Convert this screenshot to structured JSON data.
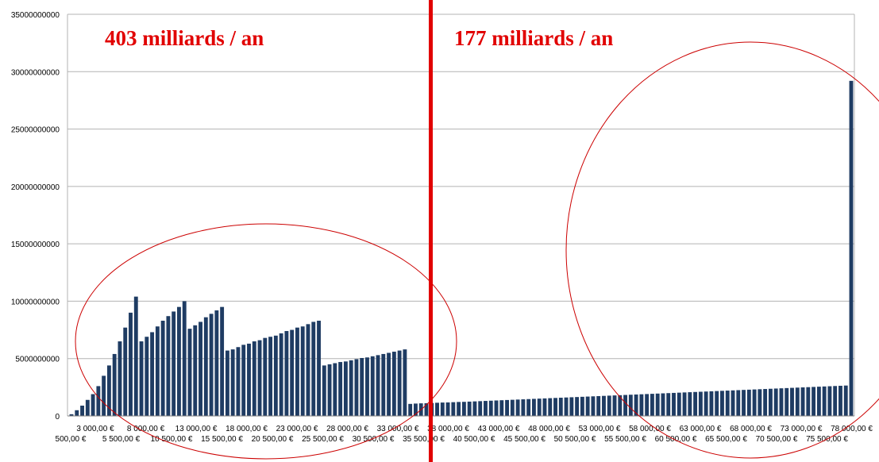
{
  "chart_data": {
    "type": "bar",
    "title": "",
    "xlabel": "",
    "ylabel": "",
    "ylim": [
      0,
      35000000000
    ],
    "yticks": [
      0,
      5000000000,
      10000000000,
      15000000000,
      20000000000,
      25000000000,
      30000000000,
      35000000000
    ],
    "ytick_labels": [
      "0",
      "5000000000",
      "10000000000",
      "15000000000",
      "20000000000",
      "25000000000",
      "30000000000",
      "35000000000"
    ],
    "grid": true,
    "bar_color": "#1f3c63",
    "x_labels_upper": [
      "3 000,00 €",
      "8 000,00 €",
      "13 000,00 €",
      "18 000,00 €",
      "23 000,00 €",
      "28 000,00 €",
      "33 000,00 €",
      "38 000,00 €",
      "43 000,00 €",
      "48 000,00 €",
      "53 000,00 €",
      "58 000,00 €",
      "63 000,00 €",
      "68 000,00 €",
      "73 000,00 €",
      "78 000,00 €"
    ],
    "x_labels_lower": [
      "500,00 €",
      "5 500,00 €",
      "10 500,00 €",
      "15 500,00 €",
      "20 500,00 €",
      "25 500,00 €",
      "30 500,00 €",
      "35 500,00 €",
      "40 500,00 €",
      "45 500,00 €",
      "50 500,00 €",
      "55 500,00 €",
      "60 500,00 €",
      "65 500,00 €",
      "70 500,00 €",
      "75 500,00 €"
    ],
    "values": [
      150000000,
      500000000,
      900000000,
      1400000000,
      1900000000,
      2600000000,
      3500000000,
      4400000000,
      5400000000,
      6500000000,
      7700000000,
      9000000000,
      10400000000,
      6500000000,
      6900000000,
      7300000000,
      7800000000,
      8300000000,
      8700000000,
      9100000000,
      9500000000,
      10000000000,
      7600000000,
      7900000000,
      8200000000,
      8600000000,
      8900000000,
      9200000000,
      9500000000,
      5700000000,
      5800000000,
      6000000000,
      6200000000,
      6300000000,
      6500000000,
      6600000000,
      6800000000,
      6900000000,
      7000000000,
      7200000000,
      7400000000,
      7500000000,
      7700000000,
      7800000000,
      8000000000,
      8200000000,
      8300000000,
      4400000000,
      4500000000,
      4600000000,
      4700000000,
      4750000000,
      4850000000,
      4950000000,
      5050000000,
      5100000000,
      5200000000,
      5300000000,
      5400000000,
      5500000000,
      5600000000,
      5700000000,
      5800000000,
      1050000000,
      1080000000,
      1100000000,
      1110000000,
      1130000000,
      1150000000,
      1170000000,
      1180000000,
      1200000000,
      1220000000,
      1230000000,
      1250000000,
      1270000000,
      1290000000,
      1310000000,
      1330000000,
      1350000000,
      1370000000,
      1390000000,
      1410000000,
      1430000000,
      1450000000,
      1470000000,
      1490000000,
      1510000000,
      1530000000,
      1550000000,
      1570000000,
      1590000000,
      1610000000,
      1630000000,
      1650000000,
      1670000000,
      1690000000,
      1710000000,
      1730000000,
      1750000000,
      1770000000,
      1790000000,
      1810000000,
      1830000000,
      1850000000,
      1870000000,
      1890000000,
      1910000000,
      1930000000,
      1950000000,
      1970000000,
      1990000000,
      2010000000,
      2030000000,
      2050000000,
      2070000000,
      2090000000,
      2110000000,
      2130000000,
      2150000000,
      2170000000,
      2190000000,
      2210000000,
      2230000000,
      2250000000,
      2270000000,
      2290000000,
      2310000000,
      2330000000,
      2350000000,
      2370000000,
      2390000000,
      2410000000,
      2430000000,
      2450000000,
      2470000000,
      2490000000,
      2510000000,
      2530000000,
      2550000000,
      2570000000,
      2590000000,
      2610000000,
      2630000000,
      2650000000,
      29200000000
    ],
    "annotations": [
      {
        "text": "403 milliards / an",
        "color": "#e10000"
      },
      {
        "text": "177 milliards / an",
        "color": "#e10000"
      }
    ],
    "divider_color": "#e10000",
    "circle_color": "#cc0000"
  }
}
